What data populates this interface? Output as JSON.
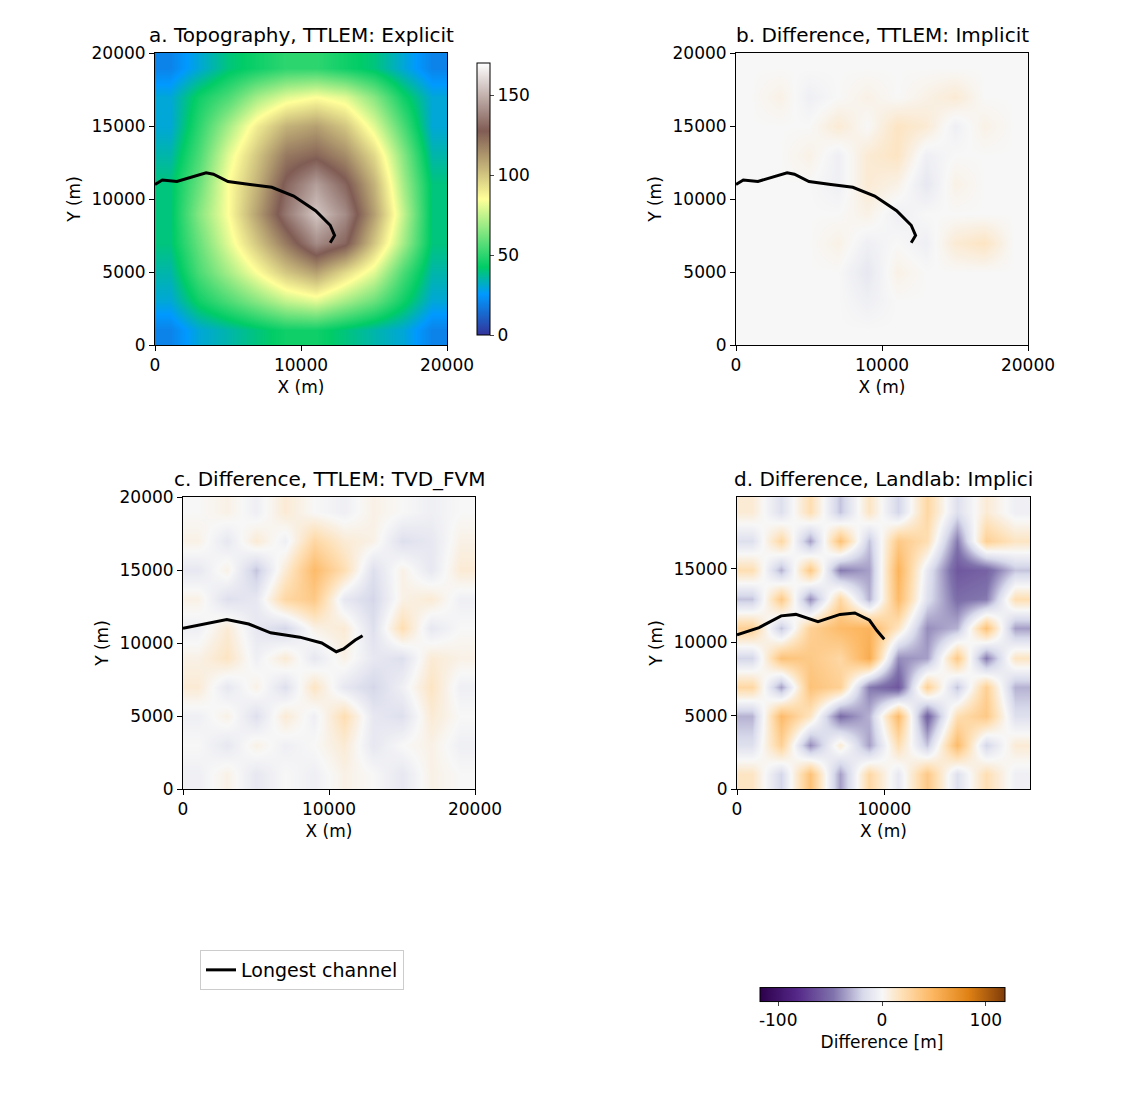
{
  "chart_data": [
    {
      "type": "heatmap",
      "title": "a. Topography, TTLEM: Explicit",
      "x_label": "X (m)",
      "y_label": "Y (m)",
      "xlim": [
        0,
        20000
      ],
      "ylim": [
        0,
        20000
      ],
      "xticks": [
        0,
        10000,
        20000
      ],
      "yticks": [
        0,
        5000,
        10000,
        15000,
        20000
      ],
      "color": "terrain",
      "colorbar": {
        "range": [
          0,
          170
        ],
        "ticks": [
          0,
          50,
          100,
          150
        ]
      },
      "cells": {
        "x": [
          1000,
          3000,
          5000,
          7000,
          9000,
          11000,
          13000,
          15000,
          17000,
          19000
        ],
        "y": [
          1000,
          3000,
          5000,
          7000,
          9000,
          11000,
          13000,
          15000,
          17000,
          19000
        ],
        "z": [
          [
            20,
            30,
            35,
            40,
            45,
            45,
            40,
            35,
            30,
            20
          ],
          [
            30,
            45,
            55,
            65,
            75,
            80,
            70,
            60,
            45,
            30
          ],
          [
            35,
            55,
            70,
            85,
            100,
            110,
            95,
            80,
            55,
            35
          ],
          [
            40,
            60,
            80,
            100,
            120,
            140,
            130,
            100,
            70,
            40
          ],
          [
            40,
            65,
            85,
            110,
            135,
            155,
            140,
            110,
            75,
            40
          ],
          [
            40,
            60,
            85,
            105,
            130,
            145,
            130,
            105,
            70,
            40
          ],
          [
            35,
            55,
            80,
            100,
            120,
            125,
            115,
            95,
            65,
            35
          ],
          [
            30,
            50,
            70,
            90,
            105,
            110,
            100,
            80,
            55,
            30
          ],
          [
            30,
            45,
            55,
            70,
            80,
            85,
            80,
            65,
            45,
            30
          ],
          [
            20,
            30,
            40,
            45,
            50,
            50,
            45,
            40,
            30,
            20
          ]
        ]
      },
      "series": [
        {
          "name": "Longest channel",
          "type": "line",
          "color": "#000000",
          "x": [
            0,
            500,
            1500,
            2500,
            3500,
            4000,
            5000,
            6500,
            8000,
            9500,
            11000,
            12000,
            12300,
            12000
          ],
          "y": [
            11000,
            11300,
            11200,
            11500,
            11800,
            11700,
            11200,
            11000,
            10800,
            10200,
            9200,
            8200,
            7500,
            7000
          ]
        }
      ]
    },
    {
      "type": "heatmap",
      "title": "b. Difference, TTLEM: Implicit",
      "x_label": "X (m)",
      "y_label": "Y (m)",
      "xlim": [
        0,
        20000
      ],
      "ylim": [
        0,
        20000
      ],
      "xticks": [
        0,
        10000,
        20000
      ],
      "yticks": [
        0,
        5000,
        10000,
        15000,
        20000
      ],
      "color": "PuOr",
      "colorbar": {
        "range": [
          -118,
          118
        ],
        "ticks": [
          -100,
          0,
          100
        ],
        "label": "Difference [m]"
      },
      "cells": {
        "x": [
          1000,
          3000,
          5000,
          7000,
          9000,
          11000,
          13000,
          15000,
          17000,
          19000
        ],
        "y": [
          1000,
          3000,
          5000,
          7000,
          9000,
          11000,
          13000,
          15000,
          17000,
          19000
        ],
        "z": [
          [
            0,
            0,
            0,
            0,
            0,
            0,
            0,
            0,
            0,
            0
          ],
          [
            0,
            0,
            0,
            0,
            -5,
            0,
            0,
            0,
            0,
            0
          ],
          [
            0,
            0,
            0,
            0,
            -10,
            5,
            0,
            0,
            0,
            0
          ],
          [
            0,
            0,
            0,
            5,
            -5,
            0,
            -5,
            10,
            15,
            0
          ],
          [
            0,
            0,
            0,
            0,
            5,
            -5,
            0,
            0,
            0,
            0
          ],
          [
            0,
            0,
            0,
            -5,
            10,
            5,
            -10,
            5,
            0,
            0
          ],
          [
            0,
            0,
            5,
            -5,
            10,
            15,
            -5,
            0,
            0,
            0
          ],
          [
            0,
            0,
            0,
            10,
            0,
            15,
            10,
            -5,
            5,
            0
          ],
          [
            0,
            5,
            -5,
            0,
            5,
            0,
            5,
            10,
            0,
            0
          ],
          [
            0,
            0,
            0,
            0,
            0,
            0,
            0,
            0,
            0,
            0
          ]
        ]
      },
      "series": [
        {
          "name": "Longest channel",
          "type": "line",
          "color": "#000000",
          "x": [
            0,
            500,
            1500,
            2500,
            3500,
            4000,
            5000,
            6500,
            8000,
            9500,
            11000,
            12000,
            12300,
            12000
          ],
          "y": [
            11000,
            11300,
            11200,
            11500,
            11800,
            11700,
            11200,
            11000,
            10800,
            10200,
            9200,
            8200,
            7500,
            7000
          ]
        }
      ]
    },
    {
      "type": "heatmap",
      "title": "c. Difference, TTLEM: TVD_FVM",
      "x_label": "X (m)",
      "y_label": "Y (m)",
      "xlim": [
        0,
        20000
      ],
      "ylim": [
        0,
        20000
      ],
      "xticks": [
        0,
        10000,
        20000
      ],
      "yticks": [
        0,
        5000,
        10000,
        15000,
        20000
      ],
      "color": "PuOr",
      "legend": "bottom",
      "colorbar": {
        "range": [
          -118,
          118
        ],
        "ticks": [
          -100,
          0,
          100
        ],
        "label": "Difference [m]"
      },
      "cells": {
        "x": [
          1000,
          3000,
          5000,
          7000,
          9000,
          11000,
          13000,
          15000,
          17000,
          19000
        ],
        "y": [
          1000,
          3000,
          5000,
          7000,
          9000,
          11000,
          13000,
          15000,
          17000,
          19000
        ],
        "z": [
          [
            -5,
            5,
            -10,
            0,
            -5,
            5,
            0,
            -10,
            5,
            0
          ],
          [
            0,
            -10,
            5,
            -5,
            0,
            10,
            -10,
            0,
            5,
            -5
          ],
          [
            -5,
            5,
            -15,
            10,
            -5,
            20,
            -10,
            -15,
            10,
            0
          ],
          [
            10,
            -10,
            5,
            -15,
            15,
            -10,
            -20,
            -5,
            15,
            -5
          ],
          [
            5,
            15,
            -5,
            10,
            -10,
            5,
            -10,
            -15,
            10,
            5
          ],
          [
            -5,
            10,
            -10,
            -20,
            5,
            10,
            -15,
            20,
            -10,
            0
          ],
          [
            5,
            -15,
            -10,
            25,
            35,
            -10,
            -20,
            5,
            10,
            -5
          ],
          [
            -10,
            5,
            -25,
            10,
            45,
            20,
            -15,
            5,
            -10,
            10
          ],
          [
            5,
            -10,
            10,
            -5,
            25,
            10,
            5,
            -15,
            -10,
            5
          ],
          [
            0,
            5,
            -5,
            10,
            0,
            -5,
            5,
            0,
            -5,
            0
          ]
        ]
      },
      "series": [
        {
          "name": "Longest channel",
          "type": "line",
          "color": "#000000",
          "x": [
            0,
            1500,
            3000,
            4500,
            6000,
            8000,
            9500,
            10500,
            11000,
            11800,
            12300
          ],
          "y": [
            11000,
            11300,
            11600,
            11300,
            10700,
            10400,
            10000,
            9400,
            9600,
            10200,
            10500
          ]
        }
      ]
    },
    {
      "type": "heatmap",
      "title": "d. Difference, Landlab: Implici",
      "x_label": "X (m)",
      "y_label": "Y (m)",
      "xlim": [
        0,
        19900
      ],
      "ylim": [
        0,
        19900
      ],
      "xticks": [
        0,
        10000
      ],
      "yticks": [
        0,
        5000,
        10000,
        15000
      ],
      "color": "PuOr",
      "colorbar": {
        "range": [
          -118,
          118
        ],
        "ticks": [
          -100,
          0,
          100
        ],
        "label": "Difference [m]"
      },
      "cells": {
        "x": [
          995,
          2985,
          4975,
          6965,
          8955,
          10945,
          12935,
          14925,
          16915,
          18905
        ],
        "y": [
          995,
          2985,
          4975,
          6965,
          8955,
          10945,
          12935,
          14925,
          16915,
          18905
        ],
        "z": [
          [
            15,
            -20,
            40,
            -35,
            25,
            -10,
            35,
            -15,
            20,
            -5
          ],
          [
            -15,
            30,
            -40,
            10,
            -35,
            20,
            -25,
            45,
            -20,
            10
          ],
          [
            -30,
            45,
            15,
            -50,
            -30,
            45,
            -55,
            20,
            35,
            -15
          ],
          [
            25,
            -35,
            40,
            30,
            -45,
            -60,
            30,
            -25,
            30,
            -30
          ],
          [
            -20,
            40,
            35,
            25,
            55,
            -40,
            -35,
            35,
            -45,
            15
          ],
          [
            30,
            -25,
            30,
            45,
            50,
            15,
            -40,
            -30,
            40,
            -35
          ],
          [
            -25,
            35,
            -40,
            25,
            -30,
            45,
            -15,
            -50,
            -45,
            20
          ],
          [
            20,
            -30,
            35,
            -45,
            -35,
            50,
            -10,
            -60,
            -55,
            -25
          ],
          [
            -15,
            25,
            -35,
            40,
            -25,
            35,
            20,
            -45,
            30,
            15
          ],
          [
            10,
            -15,
            20,
            -25,
            15,
            -20,
            25,
            -15,
            10,
            -5
          ]
        ]
      },
      "series": [
        {
          "name": "Longest channel",
          "type": "line",
          "color": "#000000",
          "x": [
            0,
            1500,
            3000,
            4000,
            5500,
            7000,
            8000,
            9000,
            9500,
            10000
          ],
          "y": [
            10500,
            11000,
            11800,
            11900,
            11400,
            11900,
            12000,
            11500,
            10800,
            10200
          ]
        }
      ]
    }
  ]
}
